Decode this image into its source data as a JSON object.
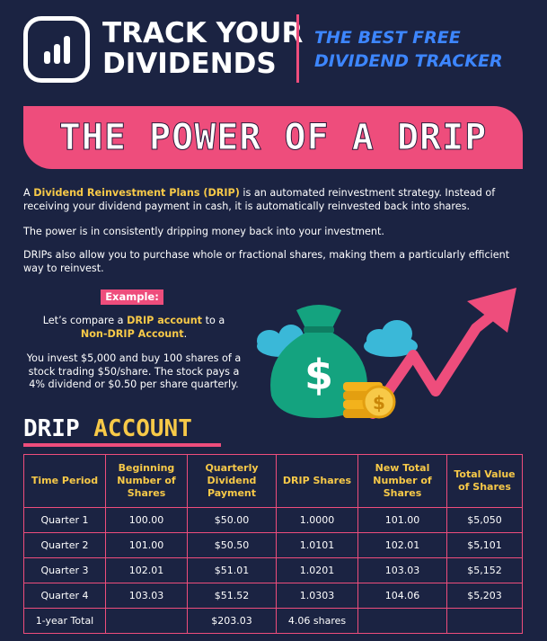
{
  "brand": {
    "line1": "TRACK YOUR",
    "line2": "DIVIDENDS",
    "logo_icon": "bar-chart-icon"
  },
  "tagline": {
    "line1": "THE BEST FREE",
    "line2": "DIVIDEND TRACKER"
  },
  "banner": {
    "title": "THE POWER OF A DRIP"
  },
  "intro": {
    "p1_pre": "A ",
    "p1_highlight": "Dividend Reinvestment Plans (DRIP)",
    "p1_post": " is an automated reinvestment strategy. Instead of receiving your dividend payment in cash, it is automatically reinvested back into shares.",
    "p2": "The power is in consistently dripping money back into your investment.",
    "p3": "DRIPs also allow you to purchase whole or fractional shares, making them a particularly efficient way to reinvest."
  },
  "example": {
    "tag": "Example:",
    "line1_pre": "Let’s compare a ",
    "line1_hl1": "DRIP account",
    "line1_mid": " to a",
    "line1_hl2": "Non-DRIP Account",
    "line1_post": ".",
    "line2": "You invest $5,000 and buy 100 shares of a stock trading $50/share. The stock pays a 4% dividend or $0.50 per share quarterly."
  },
  "illustration": {
    "money_bag_symbol": "$",
    "coin_symbol": "$",
    "icons": [
      "money-bag-icon",
      "coin-stack-icon",
      "arrow-up-icon",
      "cloud-icon"
    ]
  },
  "section": {
    "word1": "DRIP",
    "word2": "ACCOUNT"
  },
  "table": {
    "headers": [
      "Time Period",
      "Beginning Number of Shares",
      "Quarterly Dividend Payment",
      "DRIP Shares",
      "New Total Number of Shares",
      "Total Value of Shares"
    ],
    "rows": [
      [
        "Quarter 1",
        "100.00",
        "$50.00",
        "1.0000",
        "101.00",
        "$5,050"
      ],
      [
        "Quarter 2",
        "101.00",
        "$50.50",
        "1.0101",
        "102.01",
        "$5,101"
      ],
      [
        "Quarter 3",
        "102.01",
        "$51.01",
        "1.0201",
        "103.03",
        "$5,152"
      ],
      [
        "Quarter 4",
        "103.03",
        "$51.52",
        "1.0303",
        "104.06",
        "$5,203"
      ],
      [
        "1-year Total",
        "",
        "$203.03",
        "4.06 shares",
        "",
        ""
      ]
    ]
  },
  "colors": {
    "background": "#1b2342",
    "accent_pink": "#ee4d7c",
    "accent_yellow": "#f7c948",
    "accent_blue": "#3d86ff",
    "bag_green": "#14a37f",
    "cloud_blue": "#3ab8d8"
  }
}
